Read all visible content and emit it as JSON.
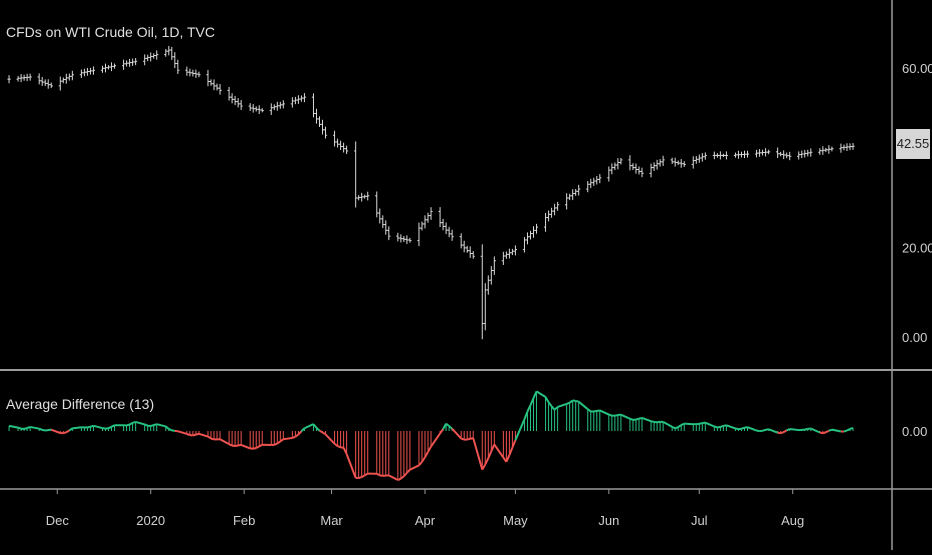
{
  "chart_data": [
    {
      "type": "ohlc",
      "title": "CFDs on WTI Crude Oil, 1D, TVC",
      "last_price": "42.55",
      "y_ticks": [
        "60.00",
        "20.00",
        "0.00"
      ],
      "ylim": [
        -4,
        70
      ],
      "x_ticks": [
        "Dec",
        "2020",
        "Feb",
        "Mar",
        "Apr",
        "May",
        "Jun",
        "Jul",
        "Aug"
      ],
      "x_tick_dates": [
        "2019-12-01",
        "2020-01-01",
        "2020-02-01",
        "2020-03-01",
        "2020-04-01",
        "2020-05-01",
        "2020-06-01",
        "2020-07-01",
        "2020-08-01"
      ],
      "date_range": [
        "2019-11-15",
        "2020-08-21"
      ],
      "closes": [
        [
          "2019-11-15",
          57.5
        ],
        [
          "2019-11-22",
          58.0
        ],
        [
          "2019-11-29",
          56.0
        ],
        [
          "2019-12-06",
          58.5
        ],
        [
          "2019-12-13",
          59.5
        ],
        [
          "2019-12-20",
          60.5
        ],
        [
          "2019-12-27",
          61.5
        ],
        [
          "2020-01-03",
          63.0
        ],
        [
          "2020-01-07",
          64.0
        ],
        [
          "2020-01-10",
          59.5
        ],
        [
          "2020-01-17",
          58.5
        ],
        [
          "2020-01-24",
          55.0
        ],
        [
          "2020-01-31",
          51.5
        ],
        [
          "2020-02-07",
          50.5
        ],
        [
          "2020-02-14",
          52.0
        ],
        [
          "2020-02-21",
          53.5
        ],
        [
          "2020-02-28",
          45.0
        ],
        [
          "2020-03-06",
          41.5
        ],
        [
          "2020-03-09",
          31.0
        ],
        [
          "2020-03-13",
          31.5
        ],
        [
          "2020-03-20",
          22.5
        ],
        [
          "2020-03-27",
          21.5
        ],
        [
          "2020-04-03",
          28.0
        ],
        [
          "2020-04-09",
          23.0
        ],
        [
          "2020-04-17",
          18.0
        ],
        [
          "2020-04-20",
          3.0
        ],
        [
          "2020-04-21",
          10.5
        ],
        [
          "2020-04-24",
          17.0
        ],
        [
          "2020-05-01",
          19.5
        ],
        [
          "2020-05-08",
          24.5
        ],
        [
          "2020-05-15",
          29.5
        ],
        [
          "2020-05-22",
          33.0
        ],
        [
          "2020-05-29",
          35.5
        ],
        [
          "2020-06-05",
          39.5
        ],
        [
          "2020-06-12",
          36.5
        ],
        [
          "2020-06-19",
          39.5
        ],
        [
          "2020-06-26",
          38.5
        ],
        [
          "2020-07-03",
          40.5
        ],
        [
          "2020-07-10",
          40.5
        ],
        [
          "2020-07-17",
          40.8
        ],
        [
          "2020-07-24",
          41.3
        ],
        [
          "2020-07-31",
          40.3
        ],
        [
          "2020-08-07",
          41.2
        ],
        [
          "2020-08-14",
          42.0
        ],
        [
          "2020-08-21",
          42.55
        ]
      ]
    },
    {
      "type": "line",
      "title": "Average Difference (13)",
      "y_ticks": [
        "0.00"
      ],
      "ylim": [
        -14,
        12
      ],
      "colors": {
        "positive": "#26c281",
        "negative": "#ef5350",
        "guide": "#ffffff"
      },
      "values": [
        [
          "2019-11-15",
          1.0
        ],
        [
          "2019-11-26",
          0.6
        ],
        [
          "2019-12-02",
          -0.4
        ],
        [
          "2019-12-10",
          1.2
        ],
        [
          "2019-12-16",
          0.8
        ],
        [
          "2019-12-22",
          1.3
        ],
        [
          "2019-12-26",
          2.0
        ],
        [
          "2020-01-01",
          1.5
        ],
        [
          "2020-01-06",
          1.2
        ],
        [
          "2020-01-10",
          -0.3
        ],
        [
          "2020-01-20",
          -1.2
        ],
        [
          "2020-01-27",
          -3.0
        ],
        [
          "2020-02-03",
          -4.0
        ],
        [
          "2020-02-10",
          -3.2
        ],
        [
          "2020-02-17",
          -1.5
        ],
        [
          "2020-02-24",
          1.8
        ],
        [
          "2020-03-01",
          -2.5
        ],
        [
          "2020-03-05",
          -4.0
        ],
        [
          "2020-03-09",
          -11.0
        ],
        [
          "2020-03-16",
          -10.0
        ],
        [
          "2020-03-23",
          -11.5
        ],
        [
          "2020-03-30",
          -8.0
        ],
        [
          "2020-04-03",
          -4.0
        ],
        [
          "2020-04-08",
          2.0
        ],
        [
          "2020-04-12",
          -1.5
        ],
        [
          "2020-04-17",
          -2.0
        ],
        [
          "2020-04-20",
          -9.0
        ],
        [
          "2020-04-24",
          -3.5
        ],
        [
          "2020-04-28",
          -7.0
        ],
        [
          "2020-05-02",
          -1.0
        ],
        [
          "2020-05-05",
          5.0
        ],
        [
          "2020-05-09",
          10.5
        ],
        [
          "2020-05-14",
          5.0
        ],
        [
          "2020-05-20",
          7.5
        ],
        [
          "2020-05-26",
          5.0
        ],
        [
          "2020-06-02",
          4.0
        ],
        [
          "2020-06-09",
          3.0
        ],
        [
          "2020-06-16",
          2.5
        ],
        [
          "2020-06-23",
          1.0
        ],
        [
          "2020-06-30",
          2.0
        ],
        [
          "2020-07-07",
          1.2
        ],
        [
          "2020-07-14",
          0.8
        ],
        [
          "2020-07-21",
          0.3
        ],
        [
          "2020-07-28",
          -0.2
        ],
        [
          "2020-08-04",
          0.6
        ],
        [
          "2020-08-11",
          -0.2
        ],
        [
          "2020-08-21",
          0.4
        ]
      ]
    }
  ]
}
